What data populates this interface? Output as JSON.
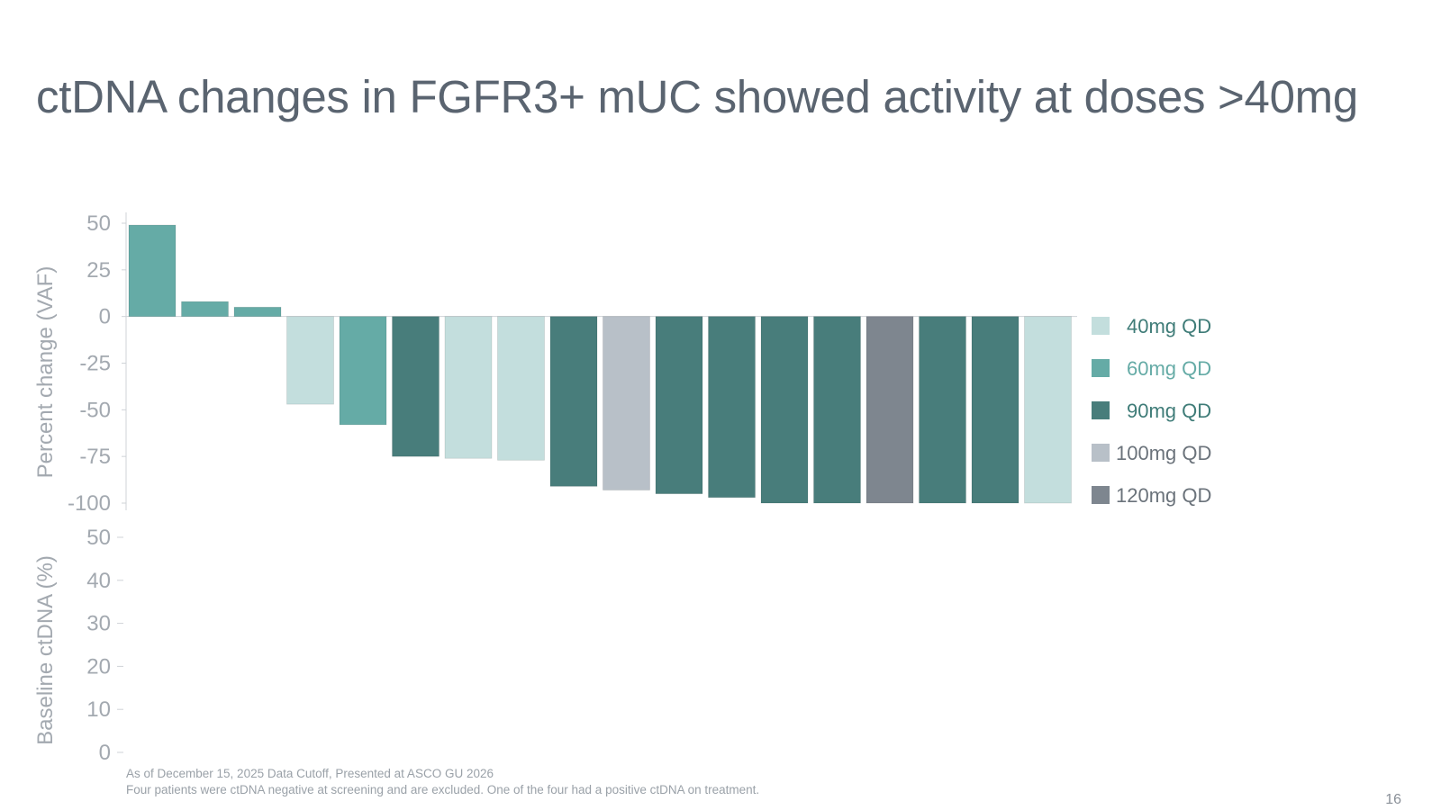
{
  "slide": {
    "title": "ctDNA changes in FGFR3+ mUC showed activity at doses >40mg",
    "footnotes": [
      "As of December 15, 2025 Data Cutoff, Presented at ASCO GU 2026",
      "Four patients were ctDNA negative at screening and are excluded. One of the four had a positive ctDNA on treatment."
    ],
    "page_number": "16"
  },
  "colors": {
    "40mg QD": "#c3dedd",
    "60mg QD": "#65aba6",
    "90mg QD": "#487d7b",
    "100mg QD": "#b8c0c8",
    "120mg QD": "#7e868f"
  },
  "legend_text_colors": {
    "40mg QD": "#3f7c78",
    "60mg QD": "#65aba6",
    "90mg QD": "#3f7c78",
    "100mg QD": "#6b737b",
    "120mg QD": "#6b737b"
  },
  "chart_data": [
    {
      "type": "bar",
      "title": "",
      "ylabel": "Percent change (VAF)",
      "ylim": [
        -100,
        50
      ],
      "yticks": [
        50,
        25,
        0,
        -25,
        -50,
        -75,
        -100
      ],
      "values": [
        49,
        8,
        5,
        -47,
        -58,
        -75,
        -76,
        -77,
        -91,
        -93,
        -95,
        -97,
        -100,
        -100,
        -100,
        -100,
        -100,
        -100
      ],
      "dose": [
        "60mg QD",
        "60mg QD",
        "60mg QD",
        "40mg QD",
        "60mg QD",
        "90mg QD",
        "40mg QD",
        "40mg QD",
        "90mg QD",
        "100mg QD",
        "90mg QD",
        "90mg QD",
        "90mg QD",
        "90mg QD",
        "120mg QD",
        "90mg QD",
        "90mg QD",
        "40mg QD"
      ],
      "legend": [
        "40mg QD",
        "60mg QD",
        "90mg QD",
        "100mg QD",
        "120mg QD"
      ],
      "legend_position": "right"
    },
    {
      "type": "bar",
      "ylabel": "Baseline ctDNA (%)",
      "ylim": [
        0,
        50
      ],
      "yticks": [
        50,
        40,
        30,
        20,
        10,
        0
      ],
      "values": []
    }
  ]
}
